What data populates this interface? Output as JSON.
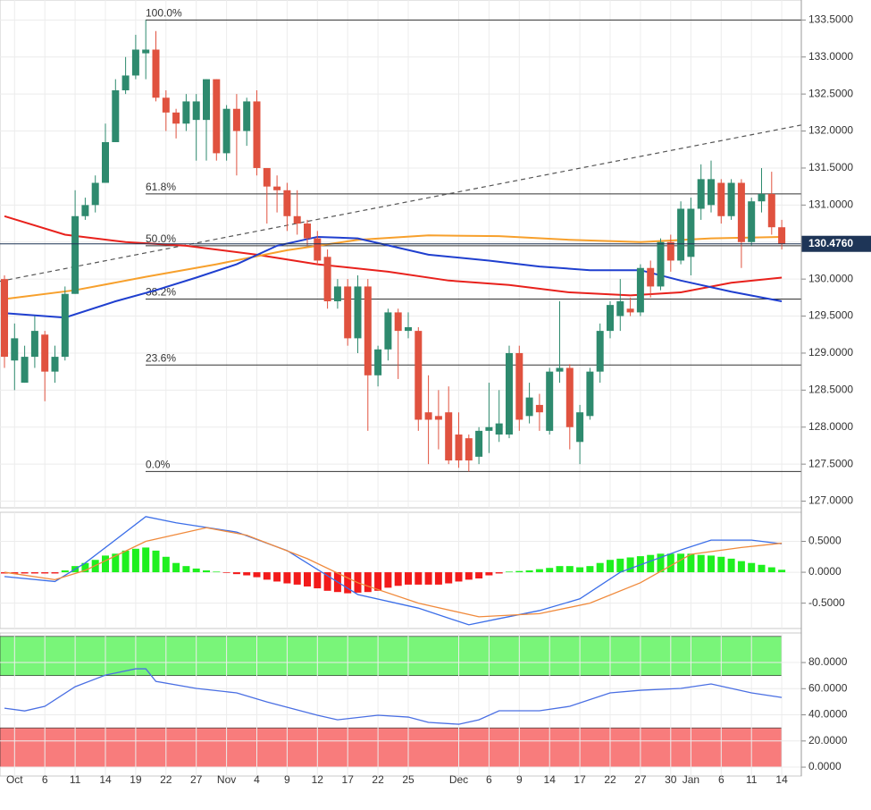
{
  "chart_data": [
    {
      "type": "candlestick",
      "ylim": [
        126.91,
        133.77
      ],
      "yticks": [
        {
          "value": 133.5,
          "label": "133.5000"
        },
        {
          "value": 133.0,
          "label": "133.0000"
        },
        {
          "value": 132.5,
          "label": "132.5000"
        },
        {
          "value": 132.0,
          "label": "132.0000"
        },
        {
          "value": 131.5,
          "label": "131.5000"
        },
        {
          "value": 131.0,
          "label": "131.0000"
        },
        {
          "value": 130.5,
          "label": "130.5000"
        },
        {
          "value": 130.0,
          "label": "130.0000"
        },
        {
          "value": 129.5,
          "label": "129.5000"
        },
        {
          "value": 129.0,
          "label": "129.0000"
        },
        {
          "value": 128.5,
          "label": "128.5000"
        },
        {
          "value": 128.0,
          "label": "128.0000"
        },
        {
          "value": 127.5,
          "label": "127.5000"
        },
        {
          "value": 127.0,
          "label": "127.0000"
        }
      ],
      "up_color": "#2e8a6e",
      "down_color": "#e0523f",
      "open": [
        130.0,
        128.9,
        128.6,
        128.95,
        129.25,
        128.75,
        128.95,
        129.8,
        130.85,
        131.0,
        131.3,
        131.85,
        132.55,
        132.75,
        133.05,
        133.1,
        132.45,
        132.25,
        132.1,
        132.15,
        132.15,
        132.7,
        131.7,
        132.3,
        132.0,
        132.4,
        131.5,
        131.25,
        131.2,
        130.85,
        130.75,
        130.55,
        130.3,
        129.7,
        129.9,
        129.2,
        129.9,
        128.7,
        129.05,
        129.55,
        129.3,
        129.3,
        128.2,
        128.15,
        128.2,
        127.9,
        127.85,
        127.6,
        127.95,
        127.9,
        127.9,
        129.0,
        128.15,
        128.3,
        127.95,
        128.75,
        128.8,
        127.8,
        128.15,
        128.75,
        129.3,
        129.5,
        129.6,
        129.55,
        130.15,
        129.9,
        130.5,
        130.25,
        130.3,
        130.95,
        131.0,
        131.3,
        130.85,
        131.3,
        130.5,
        131.05,
        131.15,
        130.7
      ],
      "high": [
        130.05,
        129.4,
        129.1,
        129.5,
        129.3,
        129.1,
        129.9,
        131.2,
        131.1,
        131.4,
        132.1,
        132.7,
        133.0,
        133.3,
        133.5,
        133.35,
        132.55,
        132.3,
        132.5,
        132.5,
        132.7,
        132.7,
        132.35,
        132.5,
        132.45,
        132.55,
        131.5,
        131.4,
        131.3,
        131.2,
        130.8,
        130.65,
        130.4,
        130.0,
        130.0,
        130.05,
        130.0,
        129.1,
        129.6,
        129.6,
        129.55,
        129.35,
        128.7,
        128.5,
        128.55,
        128.2,
        127.9,
        128.0,
        128.6,
        128.5,
        129.1,
        129.1,
        128.6,
        128.45,
        128.8,
        129.7,
        128.85,
        128.3,
        128.8,
        129.4,
        129.7,
        130.0,
        129.75,
        130.2,
        130.25,
        130.55,
        130.6,
        131.05,
        131.1,
        131.55,
        131.6,
        131.35,
        131.35,
        131.35,
        131.1,
        131.5,
        131.45,
        130.8
      ],
      "low": [
        128.8,
        128.5,
        128.6,
        128.8,
        128.35,
        128.6,
        128.9,
        129.8,
        130.8,
        130.9,
        131.3,
        131.85,
        132.5,
        132.7,
        132.7,
        132.4,
        132.0,
        131.9,
        132.0,
        131.6,
        131.6,
        131.6,
        131.6,
        131.4,
        131.8,
        131.4,
        130.75,
        130.9,
        130.65,
        130.6,
        130.45,
        130.2,
        129.6,
        129.6,
        129.1,
        129.0,
        127.95,
        128.55,
        128.9,
        128.65,
        129.2,
        127.95,
        127.5,
        127.7,
        127.5,
        127.45,
        127.4,
        127.5,
        127.65,
        127.8,
        127.85,
        127.95,
        128.05,
        127.95,
        127.9,
        128.6,
        127.7,
        127.5,
        128.1,
        128.6,
        129.2,
        129.3,
        129.5,
        129.5,
        129.75,
        129.85,
        130.1,
        130.2,
        130.05,
        130.8,
        130.9,
        130.75,
        130.8,
        130.15,
        130.45,
        130.9,
        130.6,
        130.4
      ],
      "close": [
        128.95,
        129.2,
        128.95,
        129.3,
        128.75,
        128.95,
        129.8,
        130.85,
        131.0,
        131.3,
        131.85,
        132.55,
        132.75,
        133.1,
        133.1,
        132.45,
        132.25,
        132.1,
        132.4,
        132.4,
        132.7,
        131.7,
        132.3,
        132.0,
        132.4,
        131.5,
        131.25,
        131.2,
        130.85,
        130.75,
        130.55,
        130.25,
        129.7,
        129.9,
        129.2,
        129.9,
        128.7,
        129.05,
        129.55,
        129.3,
        129.35,
        128.1,
        128.1,
        128.1,
        127.55,
        127.55,
        127.55,
        127.95,
        128.0,
        128.05,
        129.0,
        128.1,
        128.4,
        128.2,
        128.75,
        128.8,
        128.0,
        128.2,
        128.75,
        129.3,
        129.65,
        129.7,
        129.55,
        130.15,
        129.9,
        130.5,
        130.25,
        130.95,
        130.95,
        131.35,
        131.35,
        130.85,
        131.3,
        130.5,
        131.05,
        131.15,
        130.7,
        130.476
      ],
      "series": [
        {
          "color": "#e8211c",
          "x": [
            0,
            6,
            12,
            18,
            25,
            31,
            38,
            44,
            50,
            56,
            62,
            67,
            72,
            77
          ],
          "values": [
            130.85,
            130.6,
            130.5,
            130.45,
            130.33,
            130.2,
            130.1,
            129.98,
            129.92,
            129.82,
            129.78,
            129.82,
            129.95,
            130.02
          ]
        },
        {
          "color": "#f7a02c",
          "x": [
            0,
            7,
            14,
            21,
            28,
            35,
            42,
            49,
            56,
            63,
            70,
            77
          ],
          "values": [
            129.73,
            129.85,
            130.03,
            130.2,
            130.39,
            130.53,
            130.59,
            130.58,
            130.53,
            130.5,
            130.55,
            130.57
          ]
        },
        {
          "color": "#1f3fcf",
          "x": [
            0,
            6,
            11,
            15,
            19,
            23,
            27,
            31,
            35,
            42,
            48,
            53,
            58,
            63,
            67,
            72,
            77
          ],
          "values": [
            129.54,
            129.48,
            129.7,
            129.85,
            130.02,
            130.2,
            130.45,
            130.57,
            130.55,
            130.33,
            130.25,
            130.17,
            130.12,
            130.12,
            129.98,
            129.83,
            129.7
          ]
        }
      ],
      "trendline": {
        "color": "#555555",
        "x": [
          -0.44,
          78.9
        ],
        "values": [
          129.97,
          132.08
        ]
      },
      "fib_levels": [
        {
          "value": 133.5,
          "label": "100.0%"
        },
        {
          "value": 131.15,
          "label": "61.8%"
        },
        {
          "value": 130.45,
          "label": "50.0%"
        },
        {
          "value": 129.73,
          "label": "38.2%"
        },
        {
          "value": 128.84,
          "label": "23.6%"
        },
        {
          "value": 127.4,
          "label": "0.0%"
        }
      ],
      "last_price": {
        "value": 130.476,
        "label": "130.4760"
      }
    },
    {
      "type": "macd",
      "ylim": [
        -0.91,
        0.97
      ],
      "yticks": [
        {
          "value": 0.5,
          "label": "0.5000"
        },
        {
          "value": 0,
          "label": "0.0000"
        },
        {
          "value": -0.5,
          "label": "-0.5000"
        }
      ],
      "up_color": "#1ff01f",
      "down_color": "#f21a1a",
      "values": [
        -0.02,
        -0.02,
        -0.02,
        -0.02,
        -0.02,
        -0.02,
        0.03,
        0.1,
        0.15,
        0.2,
        0.27,
        0.3,
        0.35,
        0.38,
        0.4,
        0.35,
        0.25,
        0.15,
        0.1,
        0.06,
        0.03,
        0.01,
        -0.01,
        -0.03,
        -0.05,
        -0.08,
        -0.12,
        -0.15,
        -0.18,
        -0.2,
        -0.23,
        -0.26,
        -0.3,
        -0.32,
        -0.34,
        -0.33,
        -0.32,
        -0.3,
        -0.25,
        -0.22,
        -0.2,
        -0.2,
        -0.2,
        -0.2,
        -0.18,
        -0.15,
        -0.12,
        -0.1,
        -0.05,
        -0.02,
        0.01,
        0.02,
        0.03,
        0.05,
        0.07,
        0.1,
        0.1,
        0.08,
        0.1,
        0.15,
        0.2,
        0.22,
        0.24,
        0.26,
        0.28,
        0.3,
        0.3,
        0.3,
        0.3,
        0.28,
        0.27,
        0.25,
        0.22,
        0.18,
        0.15,
        0.12,
        0.08,
        0.04
      ],
      "series": [
        {
          "color": "#3b6ee8",
          "x": [
            0,
            5,
            8,
            14,
            17,
            23,
            28,
            35,
            41,
            46,
            49,
            53,
            57,
            61,
            67,
            70,
            74,
            77
          ],
          "values": [
            -0.07,
            -0.15,
            0.15,
            0.9,
            0.8,
            0.65,
            0.35,
            -0.36,
            -0.58,
            -0.85,
            -0.75,
            -0.62,
            -0.43,
            0,
            0.36,
            0.52,
            0.52,
            0.46
          ]
        },
        {
          "color": "#f08a3c",
          "x": [
            0,
            5,
            8,
            14,
            20,
            24,
            30,
            35,
            41,
            47,
            53,
            58,
            63,
            68,
            73,
            77
          ],
          "values": [
            0,
            -0.12,
            0.03,
            0.5,
            0.72,
            0.6,
            0.22,
            -0.17,
            -0.5,
            -0.72,
            -0.67,
            -0.5,
            -0.17,
            0.29,
            0.4,
            0.47
          ]
        }
      ]
    },
    {
      "type": "line",
      "ylim": [
        -6.8,
        102.6
      ],
      "yticks": [
        {
          "value": 80,
          "label": "80.0000"
        },
        {
          "value": 60,
          "label": "60.0000"
        },
        {
          "value": 40,
          "label": "40.0000"
        },
        {
          "value": 20,
          "label": "20.0000"
        },
        {
          "value": 0,
          "label": "0.0000"
        }
      ],
      "bands": [
        {
          "from": 70,
          "to": 100,
          "color": "#79f579"
        },
        {
          "from": 0,
          "to": 30,
          "color": "#f87c7c"
        }
      ],
      "categories": [
        null,
        "Oct",
        null,
        null,
        "6",
        null,
        null,
        "11",
        null,
        null,
        "14",
        null,
        null,
        "19",
        null,
        null,
        "22",
        null,
        null,
        "27",
        null,
        null,
        "Nov",
        null,
        null,
        "4",
        null,
        null,
        "9",
        null,
        null,
        "12",
        null,
        null,
        "17",
        null,
        null,
        "22",
        null,
        null,
        "25",
        null,
        null,
        null,
        null,
        "Dec",
        null,
        null,
        "6",
        null,
        null,
        "9",
        null,
        null,
        "14",
        null,
        null,
        "17",
        null,
        null,
        "22",
        null,
        null,
        "27",
        null,
        null,
        "30",
        null,
        "Jan",
        null,
        null,
        "6",
        null,
        null,
        "11",
        null,
        null,
        "14"
      ],
      "series": [
        {
          "color": "#4a6fe3",
          "x": [
            0,
            2,
            4,
            7,
            10,
            13,
            14,
            15,
            19,
            23,
            26,
            31,
            33,
            37,
            40,
            42,
            45,
            47,
            49,
            53,
            56,
            60,
            63,
            67,
            70,
            74,
            77
          ],
          "values": [
            45.1,
            43,
            46.5,
            61.5,
            70.4,
            75.2,
            75.2,
            65.6,
            60.2,
            56.8,
            49.9,
            39.7,
            36.2,
            39.7,
            38.3,
            34.2,
            32.8,
            36.2,
            43.1,
            43.1,
            46.5,
            56.8,
            58.8,
            60.2,
            63.6,
            56.8,
            53.3
          ]
        }
      ]
    }
  ]
}
